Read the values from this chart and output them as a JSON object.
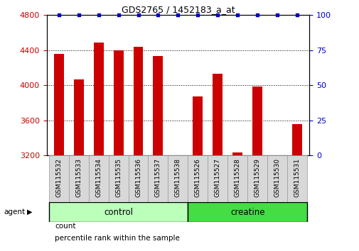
{
  "title": "GDS2765 / 1452183_a_at",
  "categories": [
    "GSM115532",
    "GSM115533",
    "GSM115534",
    "GSM115535",
    "GSM115536",
    "GSM115537",
    "GSM115538",
    "GSM115526",
    "GSM115527",
    "GSM115528",
    "GSM115529",
    "GSM115530",
    "GSM115531"
  ],
  "counts": [
    4360,
    4070,
    4490,
    4400,
    4440,
    4330,
    3200,
    3870,
    4130,
    3240,
    3990,
    3200,
    3560
  ],
  "percentiles": [
    100,
    100,
    100,
    100,
    100,
    100,
    100,
    100,
    100,
    100,
    100,
    100,
    100
  ],
  "groups": [
    {
      "label": "control",
      "start": 0,
      "end": 7,
      "color": "#bbffbb"
    },
    {
      "label": "creatine",
      "start": 7,
      "end": 13,
      "color": "#44dd44"
    }
  ],
  "bar_color": "#cc0000",
  "dot_color": "#0000cc",
  "ylim_left": [
    3200,
    4800
  ],
  "ylim_right": [
    0,
    100
  ],
  "yticks_left": [
    3200,
    3600,
    4000,
    4400,
    4800
  ],
  "yticks_right": [
    0,
    25,
    50,
    75,
    100
  ],
  "background_color": "#ffffff",
  "legend_count_label": "count",
  "legend_percentile_label": "percentile rank within the sample",
  "agent_label": "agent",
  "bar_width": 0.5,
  "n": 13,
  "ctrl_n": 7,
  "creat_n": 6
}
